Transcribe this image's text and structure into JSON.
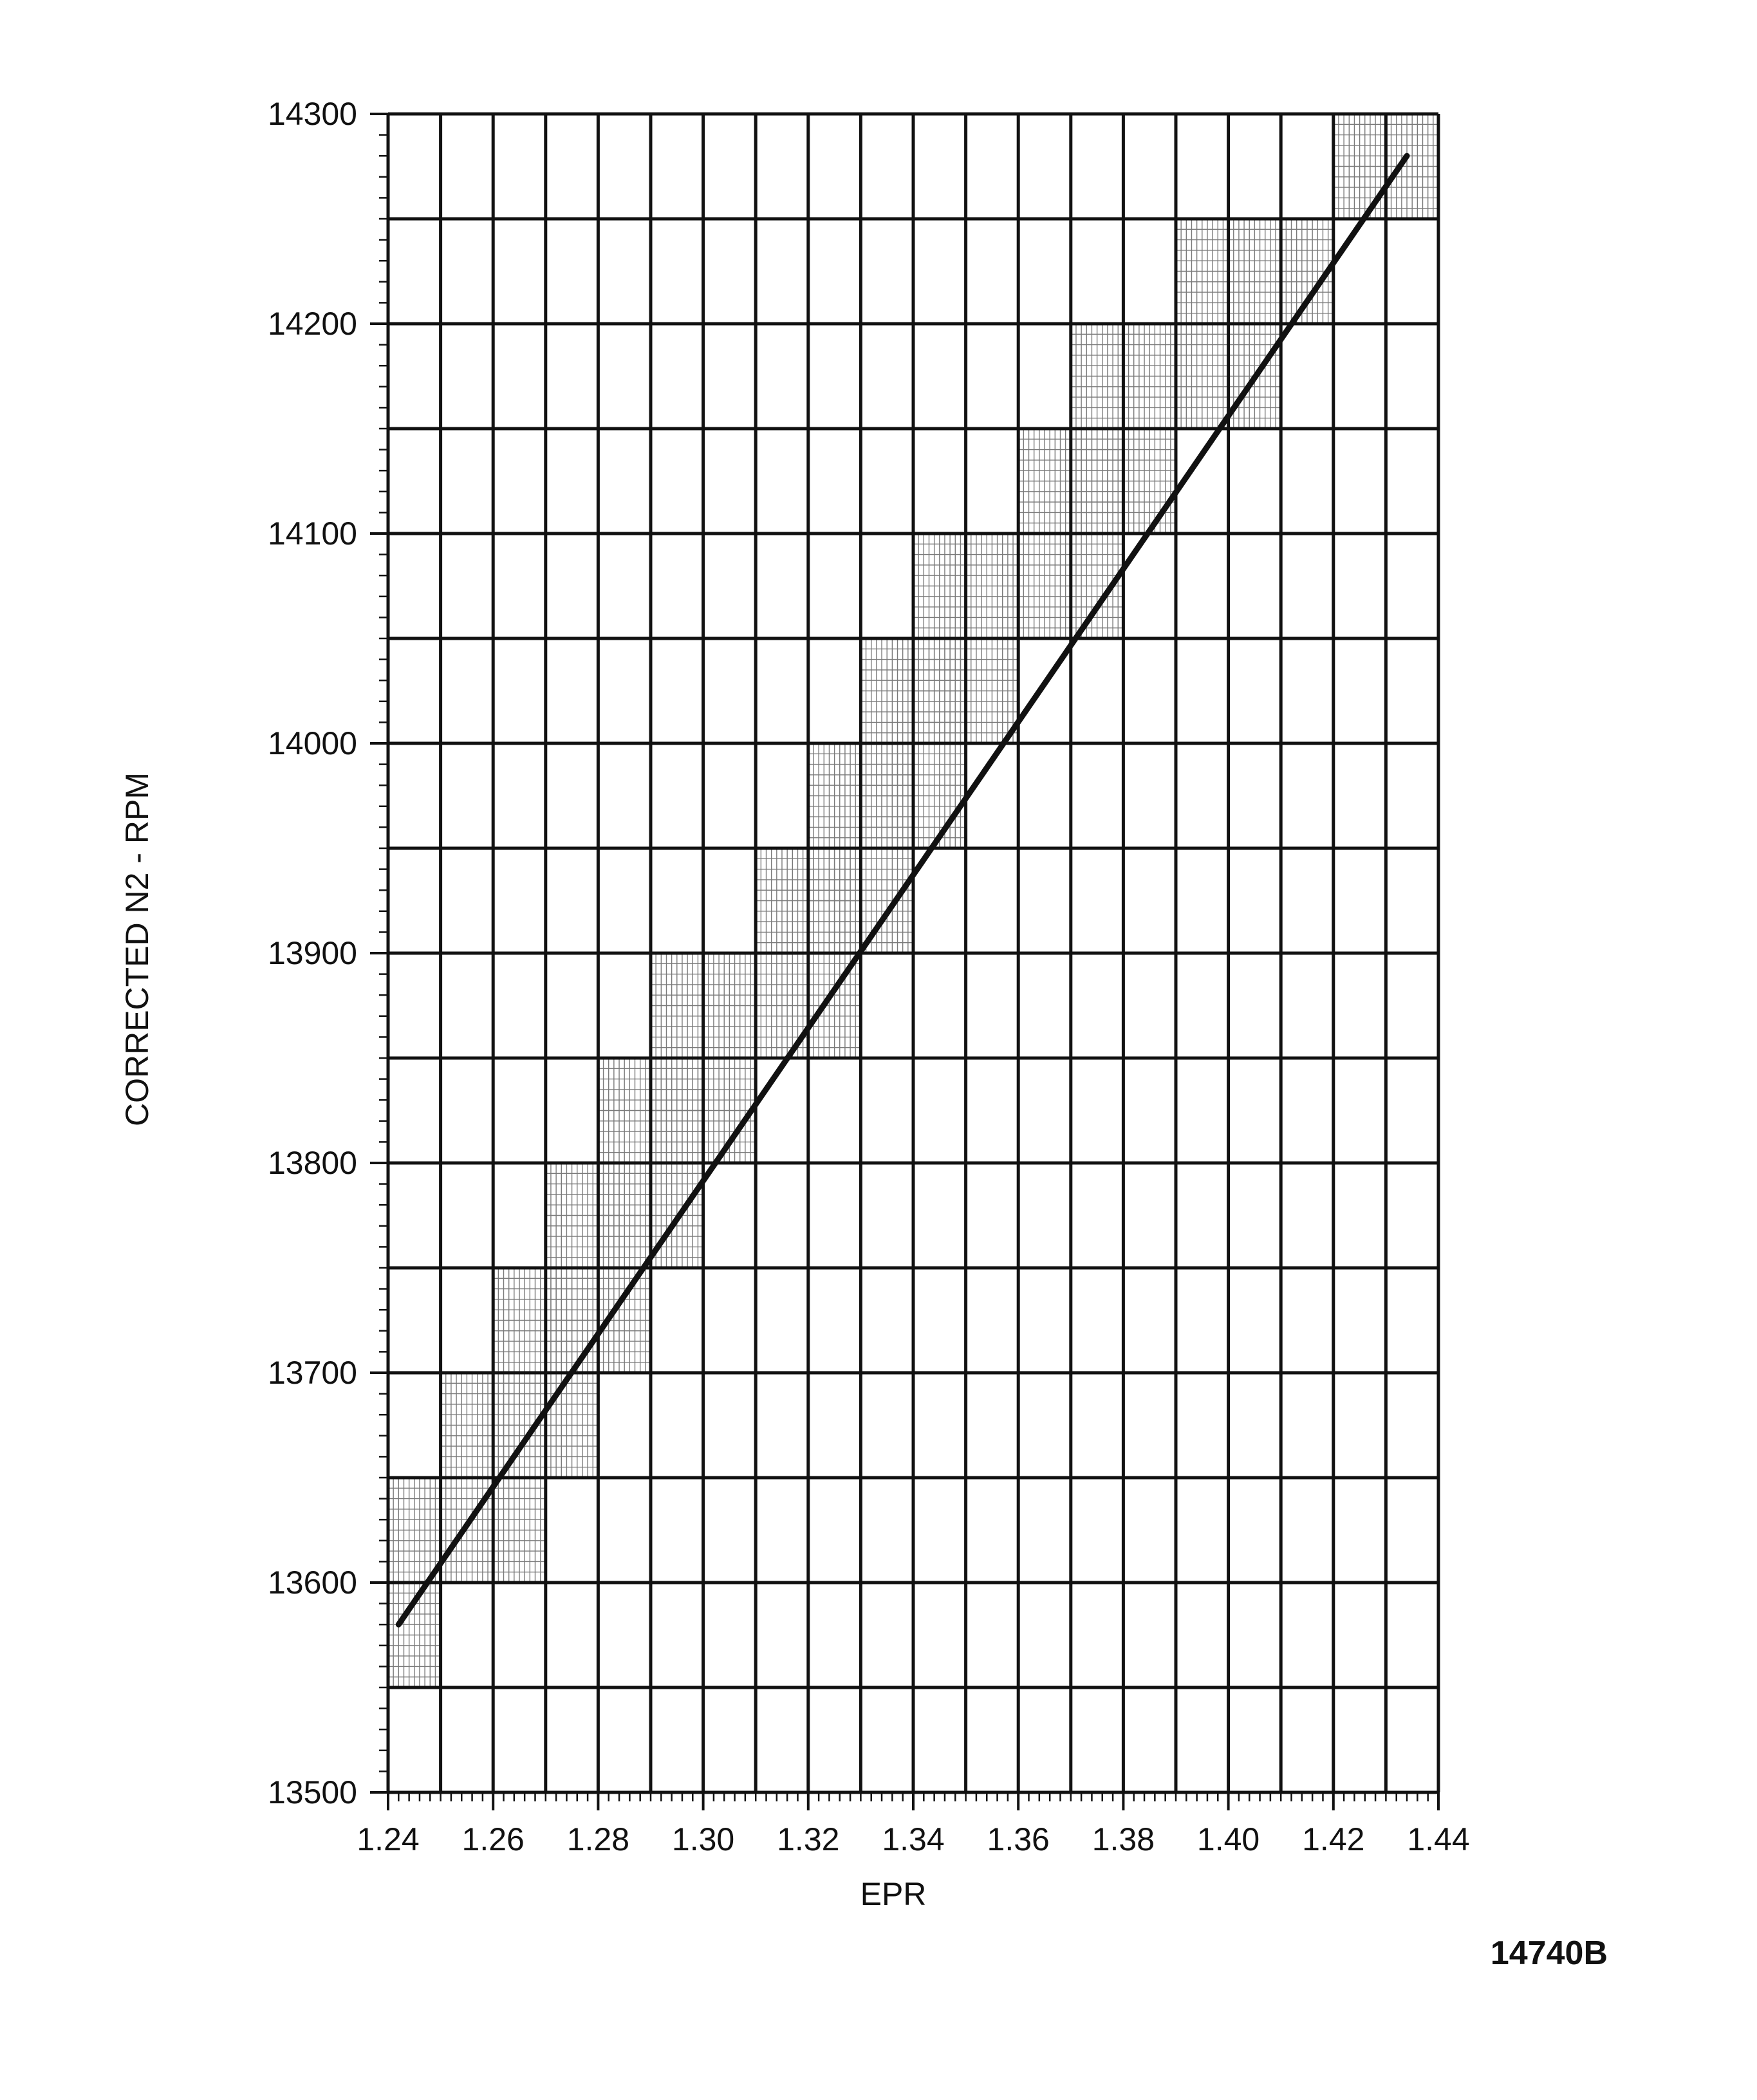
{
  "chart_data": {
    "type": "line",
    "title": "",
    "xlabel": "EPR",
    "ylabel": "CORRECTED N2 - RPM",
    "xlim": [
      1.24,
      1.44
    ],
    "ylim": [
      13500,
      14300
    ],
    "x_ticks": [
      "1.24",
      "1.26",
      "1.28",
      "1.30",
      "1.32",
      "1.34",
      "1.36",
      "1.38",
      "1.40",
      "1.42",
      "1.44"
    ],
    "y_ticks": [
      "13500",
      "13600",
      "13700",
      "13800",
      "13900",
      "14000",
      "14100",
      "14200",
      "14300"
    ],
    "major_x_step": 0.01,
    "major_y_step": 50,
    "grid": true,
    "shaded_fine_grid_cells": [
      {
        "x": [
          1.24,
          1.25
        ],
        "y": [
          13550,
          13650
        ]
      },
      {
        "x": [
          1.25,
          1.27
        ],
        "y": [
          13600,
          13700
        ]
      },
      {
        "x": [
          1.26,
          1.28
        ],
        "y": [
          13650,
          13750
        ]
      },
      {
        "x": [
          1.27,
          1.29
        ],
        "y": [
          13700,
          13800
        ]
      },
      {
        "x": [
          1.28,
          1.3
        ],
        "y": [
          13750,
          13850
        ]
      },
      {
        "x": [
          1.29,
          1.31
        ],
        "y": [
          13800,
          13900
        ]
      },
      {
        "x": [
          1.31,
          1.33
        ],
        "y": [
          13850,
          13950
        ]
      },
      {
        "x": [
          1.32,
          1.34
        ],
        "y": [
          13900,
          14000
        ]
      },
      {
        "x": [
          1.33,
          1.35
        ],
        "y": [
          13950,
          14050
        ]
      },
      {
        "x": [
          1.34,
          1.36
        ],
        "y": [
          14000,
          14100
        ]
      },
      {
        "x": [
          1.36,
          1.38
        ],
        "y": [
          14050,
          14150
        ]
      },
      {
        "x": [
          1.37,
          1.39
        ],
        "y": [
          14100,
          14200
        ]
      },
      {
        "x": [
          1.39,
          1.41
        ],
        "y": [
          14150,
          14250
        ]
      },
      {
        "x": [
          1.41,
          1.42
        ],
        "y": [
          14200,
          14250
        ]
      },
      {
        "x": [
          1.42,
          1.44
        ],
        "y": [
          14250,
          14300
        ]
      }
    ],
    "series": [
      {
        "x": [
          1.242,
          1.434
        ],
        "y": [
          13580,
          14280
        ]
      }
    ]
  },
  "figure_id": "14740B",
  "colors": {
    "ink": "#111111",
    "fine_grid": "#7a7a7a",
    "background": "#ffffff"
  }
}
